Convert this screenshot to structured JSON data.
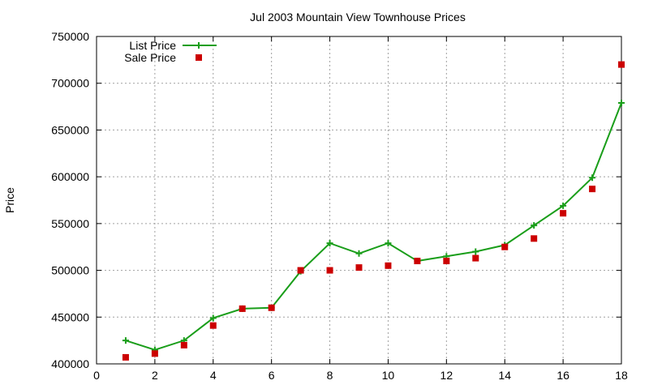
{
  "chart_data": {
    "type": "line",
    "title": "Jul 2003 Mountain View Townhouse Prices",
    "xlabel": "",
    "ylabel": "Price",
    "xlim": [
      0,
      18
    ],
    "ylim": [
      400000,
      750000
    ],
    "x_ticks": [
      0,
      2,
      4,
      6,
      8,
      10,
      12,
      14,
      16,
      18
    ],
    "y_ticks": [
      400000,
      450000,
      500000,
      550000,
      600000,
      650000,
      700000,
      750000
    ],
    "grid": true,
    "legend_position": "top-left",
    "series": [
      {
        "name": "List Price",
        "style": "line-with-plus-markers",
        "color": "#1a9e1a",
        "x": [
          1,
          2,
          3,
          4,
          5,
          6,
          7,
          8,
          9,
          10,
          11,
          12,
          13,
          14,
          15,
          16,
          17,
          18
        ],
        "values": [
          425000,
          415000,
          425000,
          449000,
          459000,
          460000,
          499000,
          529000,
          518000,
          529000,
          510000,
          515000,
          520000,
          527000,
          548000,
          569000,
          599000,
          679000
        ]
      },
      {
        "name": "Sale Price",
        "style": "square-markers",
        "color": "#cc0000",
        "x": [
          1,
          2,
          3,
          4,
          5,
          6,
          7,
          8,
          9,
          10,
          11,
          12,
          13,
          14,
          15,
          16,
          17,
          18
        ],
        "values": [
          407000,
          411000,
          420000,
          441000,
          459000,
          460000,
          500000,
          500000,
          503000,
          505000,
          510000,
          510000,
          513000,
          525000,
          534000,
          561000,
          587000,
          720000
        ]
      }
    ]
  }
}
